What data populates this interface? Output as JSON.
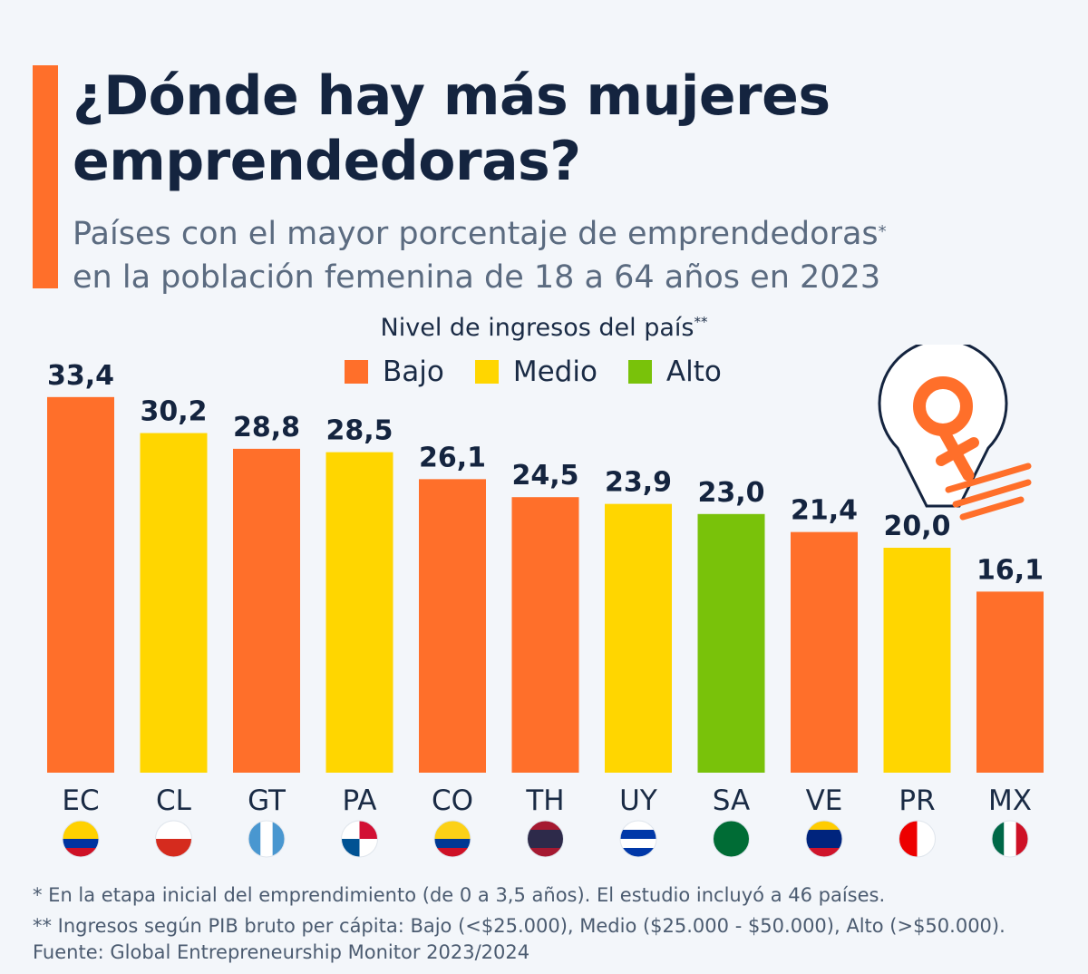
{
  "title": "¿Dónde hay más mujeres emprendedoras?",
  "subtitle": {
    "line1": "Países con el mayor porcentaje de emprendedoras",
    "marker": "*",
    "line2": "en la población femenina de 18 a 64 años en 2023"
  },
  "legend": {
    "title": "Nivel de ingresos del país",
    "marker": "**",
    "items": [
      {
        "label": "Bajo",
        "color": "#ff6f2a"
      },
      {
        "label": "Medio",
        "color": "#ffd600"
      },
      {
        "label": "Alto",
        "color": "#79c20a"
      }
    ]
  },
  "chart_data": {
    "type": "bar",
    "title": "¿Dónde hay más mujeres emprendedoras?",
    "categories": [
      "EC",
      "CL",
      "GT",
      "PA",
      "CO",
      "TH",
      "UY",
      "SA",
      "VE",
      "PR",
      "MX"
    ],
    "values": [
      33.4,
      30.2,
      28.8,
      28.5,
      26.1,
      24.5,
      23.9,
      23.0,
      21.4,
      20.0,
      16.1
    ],
    "value_labels": [
      "33,4",
      "30,2",
      "28,8",
      "28,5",
      "26,1",
      "24,5",
      "23,9",
      "23,0",
      "21,4",
      "20,0",
      "16,1"
    ],
    "income_levels": [
      "Bajo",
      "Medio",
      "Bajo",
      "Medio",
      "Bajo",
      "Bajo",
      "Medio",
      "Alto",
      "Bajo",
      "Medio",
      "Bajo"
    ],
    "xlabel": "",
    "ylabel": "",
    "ylim": [
      0,
      34
    ],
    "grid": false
  },
  "footnotes": [
    "*   En la etapa inicial del emprendimiento (de 0 a 3,5 años). El estudio incluyó a 46 países.",
    "** Ingresos según PIB bruto per cápita: Bajo (<$25.000), Medio ($25.000 - $50.000), Alto (>$50.000)."
  ],
  "source": "Fuente: Global Entrepreneurship Monitor 2023/2024",
  "colors": {
    "Bajo": "#ff6f2a",
    "Medio": "#ffd600",
    "Alto": "#79c20a"
  }
}
